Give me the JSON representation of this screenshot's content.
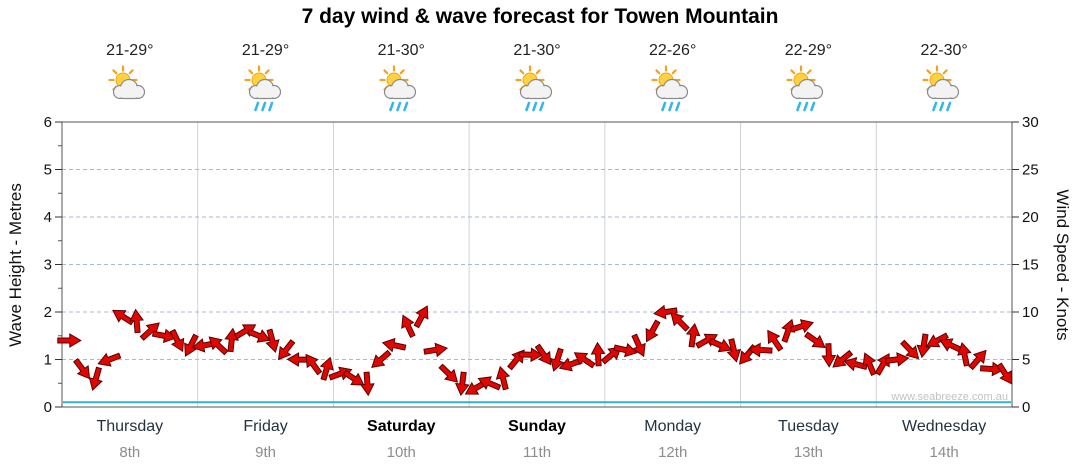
{
  "title": "7 day wind & wave forecast for Towen Mountain",
  "watermark": "www.seabreeze.com.au",
  "axes": {
    "left_label": "Wave Height - Metres",
    "right_label": "Wind Speed - Knots",
    "left_ticks": [
      "0",
      "1",
      "2",
      "3",
      "4",
      "5",
      "6"
    ],
    "right_ticks": [
      "0",
      "5",
      "10",
      "15",
      "20",
      "25",
      "30"
    ]
  },
  "days": [
    {
      "name": "Thursday",
      "date": "8th",
      "temp": "21-29°",
      "icon": "partly-cloudy",
      "weekend": false
    },
    {
      "name": "Friday",
      "date": "9th",
      "temp": "21-29°",
      "icon": "showers",
      "weekend": false
    },
    {
      "name": "Saturday",
      "date": "10th",
      "temp": "21-30°",
      "icon": "showers",
      "weekend": true
    },
    {
      "name": "Sunday",
      "date": "11th",
      "temp": "21-30°",
      "icon": "showers",
      "weekend": true
    },
    {
      "name": "Monday",
      "date": "12th",
      "temp": "22-26°",
      "icon": "showers",
      "weekend": false
    },
    {
      "name": "Tuesday",
      "date": "13th",
      "temp": "22-29°",
      "icon": "showers",
      "weekend": false
    },
    {
      "name": "Wednesday",
      "date": "14th",
      "temp": "22-30°",
      "icon": "showers",
      "weekend": false
    }
  ],
  "chart_data": {
    "type": "line",
    "title": "7 day wind & wave forecast for Towen Mountain",
    "categories": [
      "Thursday 8th",
      "Friday 9th",
      "Saturday 10th",
      "Sunday 11th",
      "Monday 12th",
      "Tuesday 13th",
      "Wednesday 14th"
    ],
    "left_axis": {
      "label": "Wave Height - Metres",
      "range": [
        0,
        6
      ]
    },
    "right_axis": {
      "label": "Wind Speed - Knots",
      "range": [
        0,
        30
      ]
    },
    "grid": true,
    "legend": "none",
    "series": [
      {
        "name": "Wind Speed",
        "units": "knots",
        "axis": "right",
        "style": "red-direction-arrows",
        "color": "#e10600",
        "points_per_day": 10,
        "values": [
          7,
          4,
          3,
          5,
          9.5,
          9,
          8,
          7.5,
          7,
          6.5,
          6.5,
          6.5,
          7,
          8,
          7.5,
          7,
          6,
          5,
          4.5,
          4,
          3.5,
          3,
          2.5,
          5,
          6.5,
          8.5,
          9.5,
          6,
          3.5,
          2.5,
          2,
          2.5,
          3,
          5,
          5.5,
          5.5,
          5,
          4.5,
          5,
          5.5,
          5.5,
          6,
          6.5,
          8,
          10,
          9,
          7.5,
          7,
          6.5,
          6,
          5.5,
          6,
          7,
          8,
          8.5,
          7,
          5.5,
          5,
          4.5,
          4.5,
          4.5,
          5,
          6,
          6.5,
          7,
          6.5,
          5.5,
          5,
          4,
          3.5
        ],
        "directions_deg": [
          0,
          53,
          106,
          159,
          212,
          265,
          318,
          11,
          64,
          117,
          170,
          223,
          276,
          329,
          22,
          75,
          128,
          181,
          234,
          287,
          340,
          33,
          86,
          139,
          192,
          245,
          298,
          351,
          44,
          97,
          150,
          203,
          256,
          309,
          2,
          55,
          108,
          161,
          214,
          267,
          320,
          13,
          66,
          119,
          172,
          225,
          278,
          331,
          24,
          77,
          130,
          183,
          236,
          289,
          342,
          35,
          88,
          141,
          194,
          247,
          300,
          353,
          46,
          99,
          152,
          205,
          258,
          311,
          4,
          57
        ]
      },
      {
        "name": "Wave Height",
        "units": "metres",
        "axis": "left",
        "style": "flat-line",
        "color": "#2fb4c9",
        "constant_value": 0.1
      }
    ]
  }
}
